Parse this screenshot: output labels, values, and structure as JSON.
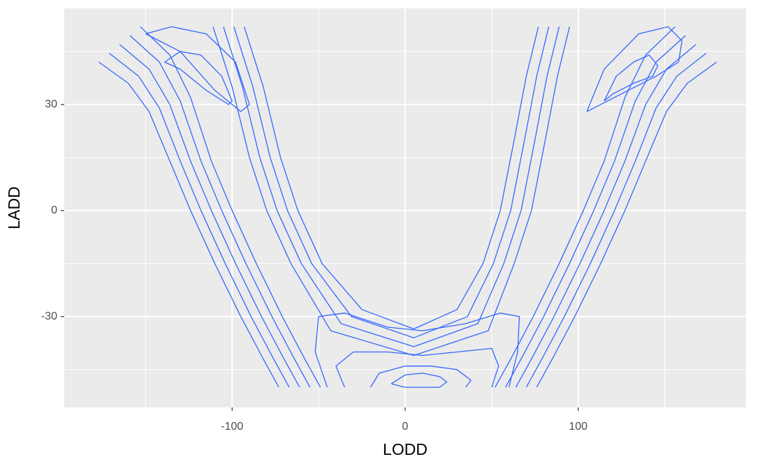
{
  "chart_data": {
    "type": "contour",
    "x_label": "LODD",
    "y_label": "LADD",
    "color": "#3366FF",
    "xlim": [
      -197,
      197
    ],
    "ylim": [
      -55.7,
      57.2
    ],
    "xticks": [
      -100,
      0,
      100
    ],
    "yticks": [
      -30,
      0,
      30
    ],
    "x_minor_grid": [
      -150,
      -50,
      50,
      150
    ],
    "y_minor_grid": [
      -45,
      -15,
      15,
      45
    ],
    "grid": true,
    "series": [
      {
        "x": [
          -177,
          -160,
          -148,
          -136,
          -124,
          -110,
          -95,
          -82,
          -73
        ],
        "values": [
          42,
          36,
          28,
          14,
          0,
          -15,
          -30,
          -42,
          -50
        ]
      },
      {
        "x": [
          -171,
          -154,
          -142,
          -130,
          -118,
          -104,
          -89,
          -76,
          -67
        ],
        "values": [
          44.5,
          38,
          29,
          14,
          0,
          -15,
          -30,
          -42,
          -50
        ]
      },
      {
        "x": [
          -165,
          -148,
          -136,
          -124,
          -112,
          -98,
          -83,
          -70,
          -61
        ],
        "values": [
          47,
          40,
          30,
          14,
          0,
          -15,
          -30,
          -42,
          -50
        ]
      },
      {
        "x": [
          -159,
          -142,
          -130,
          -118,
          -106,
          -92,
          -77,
          -64,
          -55
        ],
        "values": [
          49.5,
          42,
          31,
          14,
          0,
          -15,
          -30,
          -42,
          -50
        ]
      },
      {
        "x": [
          -153,
          -136,
          -124,
          -112,
          -100,
          -86,
          -71,
          -58,
          -49
        ],
        "values": [
          52,
          44,
          32,
          14,
          0,
          -15,
          -30,
          -42,
          -50
        ]
      },
      {
        "x": [
          180,
          163,
          151,
          139,
          127,
          113,
          98,
          85,
          76
        ],
        "values": [
          42,
          36,
          28,
          14,
          0,
          -15,
          -30,
          -42,
          -50
        ]
      },
      {
        "x": [
          174,
          157,
          145,
          133,
          121,
          107,
          92,
          79,
          70
        ],
        "values": [
          44.5,
          38,
          29,
          14,
          0,
          -15,
          -30,
          -42,
          -50
        ]
      },
      {
        "x": [
          168,
          151,
          139,
          127,
          115,
          101,
          86,
          73,
          64
        ],
        "values": [
          47,
          40,
          30,
          14,
          0,
          -15,
          -30,
          -42,
          -50
        ]
      },
      {
        "x": [
          162,
          145,
          133,
          121,
          109,
          95,
          80,
          67,
          58
        ],
        "values": [
          49.5,
          42,
          31,
          14,
          0,
          -15,
          -30,
          -42,
          -50
        ]
      },
      {
        "x": [
          156,
          139,
          127,
          115,
          103,
          89,
          74,
          61,
          52
        ],
        "values": [
          52,
          44,
          32,
          14,
          0,
          -15,
          -30,
          -42,
          -50
        ]
      },
      {
        "x": [
          -93,
          -82,
          -72,
          -62,
          -48,
          -25,
          5,
          30,
          45,
          55,
          63,
          70,
          77
        ],
        "values": [
          52,
          35,
          15,
          0,
          -15,
          -28,
          -33.5,
          -28,
          -15,
          0,
          20,
          38,
          52
        ]
      },
      {
        "x": [
          -99,
          -88,
          -78,
          -68,
          -54,
          -31,
          5,
          36,
          51,
          61,
          69,
          76,
          83
        ],
        "values": [
          52,
          35,
          15,
          0,
          -15,
          -30,
          -36,
          -30,
          -15,
          0,
          20,
          38,
          52
        ]
      },
      {
        "x": [
          -105,
          -94,
          -84,
          -74,
          -60,
          -37,
          5,
          42,
          57,
          67,
          75,
          82,
          89
        ],
        "values": [
          52,
          35,
          15,
          0,
          -15,
          -32,
          -38.5,
          -32,
          -15,
          0,
          20,
          38,
          52
        ]
      },
      {
        "x": [
          -111,
          -100,
          -90,
          -80,
          -66,
          -43,
          5,
          48,
          63,
          73,
          81,
          88,
          95
        ],
        "values": [
          52,
          35,
          15,
          0,
          -15,
          -34,
          -41,
          -34,
          -15,
          0,
          20,
          38,
          52
        ]
      },
      {
        "x": [
          -139,
          -130,
          -118,
          -106,
          -100,
          -102,
          -115,
          -130,
          -139
        ],
        "values": [
          42,
          45,
          44,
          38,
          31,
          30,
          34,
          40,
          42
        ]
      },
      {
        "x": [
          -150,
          -135,
          -115,
          -98,
          -90,
          -95,
          -110,
          -130,
          -150
        ],
        "values": [
          50,
          52,
          50,
          42,
          30,
          28,
          34,
          45,
          50
        ]
      },
      {
        "x": [
          115,
          122,
          132,
          141,
          146,
          143,
          132,
          120,
          115
        ],
        "values": [
          31,
          38,
          42,
          44,
          41,
          38,
          36,
          33,
          31
        ]
      },
      {
        "x": [
          105,
          115,
          135,
          152,
          160,
          158,
          145,
          125,
          105
        ],
        "values": [
          28,
          40,
          50,
          52,
          48,
          42,
          38,
          33,
          28
        ]
      },
      {
        "x": [
          -45,
          -52,
          -50,
          -35,
          -10,
          10,
          35,
          55,
          66,
          65,
          60
        ],
        "values": [
          -50,
          -40,
          -30,
          -29,
          -33,
          -34,
          -32,
          -29,
          -30,
          -40,
          -50
        ]
      },
      {
        "x": [
          -35,
          -40,
          -30,
          -10,
          10,
          30,
          50,
          54,
          50
        ],
        "values": [
          -50,
          -44,
          -40,
          -40,
          -41,
          -40,
          -39,
          -44,
          -50
        ]
      },
      {
        "x": [
          -20,
          -15,
          0,
          15,
          30,
          38,
          35
        ],
        "values": [
          -50,
          -46,
          -44,
          -44,
          -45,
          -48,
          -50
        ]
      },
      {
        "x": [
          -8,
          0,
          10,
          20,
          24,
          20,
          10,
          0,
          -8
        ],
        "values": [
          -49,
          -46.5,
          -46,
          -47,
          -48.5,
          -50,
          -50,
          -50,
          -49
        ]
      }
    ]
  }
}
